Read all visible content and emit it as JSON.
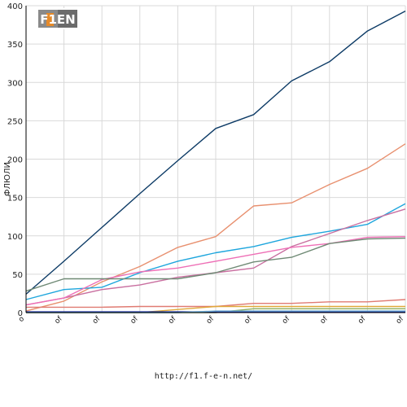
{
  "logo": {
    "text": "F1EN"
  },
  "footer": {
    "url": "http://f1.f-e-n.net/"
  },
  "chart_data": {
    "type": "line",
    "ylabel": "ФЛЮЛИ",
    "xlabel": "",
    "ylim": [
      0,
      400
    ],
    "yticks": [
      0,
      50,
      100,
      150,
      200,
      250,
      300,
      350,
      400
    ],
    "categories": [
      "o",
      "of",
      "of",
      "of",
      "of",
      "of",
      "of",
      "of",
      "of",
      "of",
      "of"
    ],
    "grid": true,
    "legend": "none",
    "series": [
      {
        "color": "#0d3b66",
        "values": [
          24,
          67,
          111,
          155,
          198,
          240,
          258,
          302,
          327,
          367,
          393
        ]
      },
      {
        "color": "#e8906f",
        "values": [
          2,
          15,
          40,
          60,
          85,
          99,
          139,
          143,
          167,
          188,
          220
        ]
      },
      {
        "color": "#1ea6dd",
        "values": [
          17,
          30,
          33,
          52,
          67,
          78,
          86,
          98,
          106,
          115,
          142
        ]
      },
      {
        "color": "#c96fa0",
        "values": [
          10,
          19,
          30,
          36,
          46,
          52,
          58,
          86,
          103,
          120,
          135
        ]
      },
      {
        "color": "#ee6fb6",
        "values": [
          10,
          19,
          43,
          53,
          58,
          67,
          76,
          85,
          90,
          98,
          99
        ]
      },
      {
        "color": "#6f8a75",
        "values": [
          28,
          44,
          44,
          44,
          44,
          52,
          66,
          72,
          90,
          96,
          97
        ]
      },
      {
        "color": "#e07b72",
        "values": [
          7,
          7,
          7,
          8,
          8,
          8,
          12,
          12,
          14,
          14,
          17
        ]
      },
      {
        "color": "#e0a93a",
        "values": [
          0,
          0,
          0,
          0,
          4,
          8,
          8,
          8,
          8,
          8,
          8
        ]
      },
      {
        "color": "#8fb060",
        "values": [
          0,
          0,
          0,
          0,
          0,
          0,
          5,
          5,
          5,
          5,
          5
        ]
      },
      {
        "color": "#1a2fa0",
        "values": [
          1,
          1,
          1,
          1,
          1,
          1,
          1,
          1,
          1,
          1,
          1
        ]
      },
      {
        "color": "#6aa8d0",
        "values": [
          0,
          0,
          0,
          0,
          0,
          2,
          2,
          2,
          2,
          2,
          2
        ]
      }
    ]
  }
}
